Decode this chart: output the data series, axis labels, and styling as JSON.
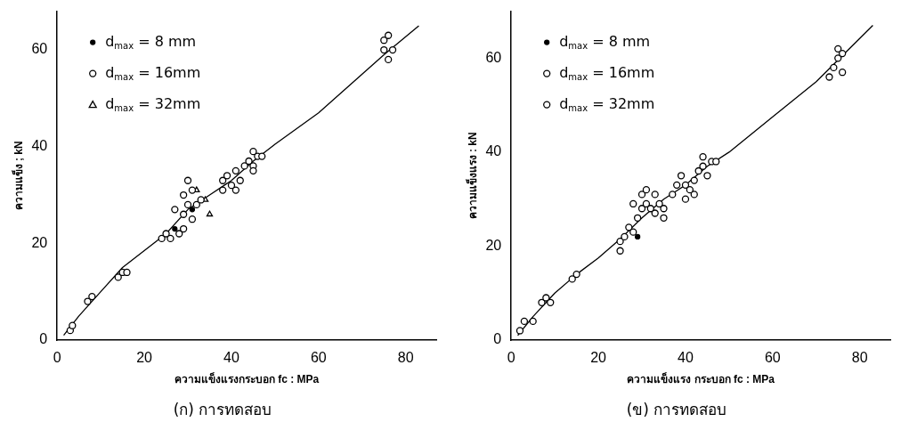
{
  "chart_data": [
    {
      "type": "scatter",
      "title": "(ก) การทดสอบ",
      "xlabel": "ความแข็งแรงกระบอก fc : MPa",
      "ylabel": "ความแข็ง ; kN",
      "xlim": [
        0,
        87
      ],
      "ylim": [
        0,
        68
      ],
      "xticks": [
        0,
        20,
        40,
        60,
        80
      ],
      "yticks": [
        0,
        20,
        40,
        60
      ],
      "grid": false,
      "legend": "top left",
      "series": [
        {
          "name": "d$_{max}$ = 8 mm",
          "color": "#000000",
          "marker": "circle",
          "x": [
            27,
            31
          ],
          "values": [
            23,
            27
          ]
        },
        {
          "name": "d$_{max}$ = 16mm",
          "color": "#000000",
          "marker": "circle",
          "x": [
            3,
            3.5,
            7,
            8,
            14,
            15,
            16,
            24,
            25,
            26,
            27,
            28,
            29,
            29,
            29,
            30,
            30,
            31,
            31,
            32,
            33,
            38,
            38,
            39,
            40,
            41,
            41,
            42,
            43,
            44,
            45,
            45,
            46,
            47,
            45,
            75,
            75,
            76,
            76,
            77
          ],
          "values": [
            2,
            3,
            8,
            9,
            13,
            14,
            14,
            21,
            22,
            21,
            27,
            22,
            23,
            26,
            30,
            33,
            28,
            31,
            25,
            28,
            29,
            33,
            31,
            34,
            32,
            35,
            31,
            33,
            36,
            37,
            39,
            36,
            38,
            38,
            35,
            60,
            62,
            63,
            58,
            60
          ]
        },
        {
          "name": "d$_{max}$ = 32mm",
          "color": "#000000",
          "marker": "triangle",
          "x": [
            32,
            34,
            35
          ],
          "values": [
            31,
            29,
            26
          ]
        },
        {
          "type": "line",
          "color": "#000000",
          "marker": "none",
          "x": [
            1.5,
            5,
            10,
            15,
            20,
            25,
            30,
            35,
            40,
            45,
            50,
            60,
            70,
            75,
            83
          ],
          "values": [
            1,
            5,
            10,
            15,
            18.5,
            22,
            27,
            30,
            33,
            37,
            40.5,
            47,
            55,
            59,
            65
          ]
        }
      ]
    },
    {
      "type": "scatter",
      "title": "(ข) การทดสอบ",
      "xlabel": "ความแข็งแรง กระบอก fc : MPa",
      "ylabel": "ความแข็งแรง : kN",
      "xlim": [
        0,
        87
      ],
      "ylim": [
        0,
        70
      ],
      "xticks": [
        0,
        20,
        40,
        60,
        80
      ],
      "yticks": [
        0,
        20,
        40,
        60
      ],
      "grid": false,
      "legend": "top left",
      "series": [
        {
          "name": "d$_{max}$ = 8 mm",
          "color": "#000000",
          "marker": "circle",
          "x": [
            29
          ],
          "values": [
            22
          ]
        },
        {
          "name": "d$_{max}$ = 16mm",
          "color": "#000000",
          "marker": "circle",
          "x": [
            39,
            28
          ],
          "values": [
            35,
            29
          ]
        },
        {
          "name": "d$_{max}$ = 32mm",
          "color": "#000000",
          "marker": "circle",
          "x": [
            2,
            3,
            5,
            7,
            8,
            9,
            14,
            15,
            25,
            25,
            26,
            27,
            28,
            29,
            30,
            30,
            31,
            31,
            32,
            33,
            33,
            34,
            35,
            35,
            37,
            38,
            40,
            40,
            41,
            42,
            42,
            43,
            44,
            44,
            45,
            46,
            47,
            73,
            74,
            75,
            75,
            76,
            76
          ],
          "values": [
            2,
            4,
            4,
            8,
            9,
            8,
            13,
            14,
            19,
            21,
            22,
            24,
            23,
            26,
            28,
            31,
            32,
            29,
            28,
            31,
            27,
            29,
            26,
            28,
            31,
            33,
            33,
            30,
            32,
            31,
            34,
            36,
            39,
            37,
            35,
            38,
            38,
            56,
            58,
            60,
            62,
            61,
            57
          ]
        },
        {
          "type": "line",
          "color": "#000000",
          "marker": "none",
          "x": [
            1.5,
            5,
            10,
            15,
            20,
            25,
            30,
            35,
            40,
            45,
            50,
            60,
            70,
            83
          ],
          "values": [
            1,
            5,
            10,
            14,
            17.5,
            21.5,
            26,
            30,
            33,
            37,
            40,
            47.5,
            55,
            67
          ]
        }
      ]
    }
  ]
}
